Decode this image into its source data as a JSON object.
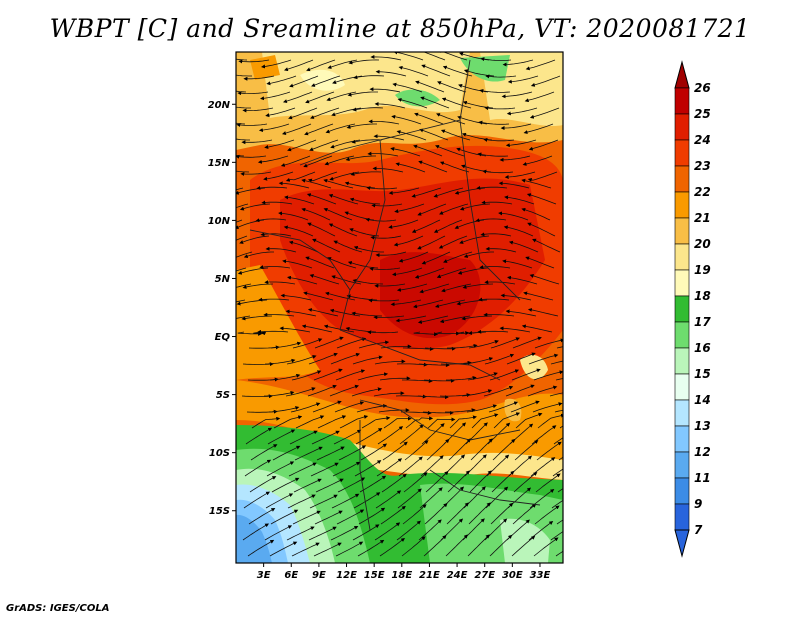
{
  "title": "WBPT [C] and Sreamline at 850hPa, VT: 2020081721",
  "credit": "GrADS: IGES/COLA",
  "map": {
    "lon_range": [
      0,
      35.5
    ],
    "lat_range": [
      -19.5,
      24.5
    ],
    "lat_ticks": [
      {
        "value": 20,
        "label": "20N"
      },
      {
        "value": 15,
        "label": "15N"
      },
      {
        "value": 10,
        "label": "10N"
      },
      {
        "value": 5,
        "label": "5N"
      },
      {
        "value": 0,
        "label": "EQ"
      },
      {
        "value": -5,
        "label": "5S"
      },
      {
        "value": -10,
        "label": "10S"
      },
      {
        "value": -15,
        "label": "15S"
      }
    ],
    "lon_ticks": [
      {
        "value": 3,
        "label": "3E"
      },
      {
        "value": 6,
        "label": "6E"
      },
      {
        "value": 9,
        "label": "9E"
      },
      {
        "value": 12,
        "label": "12E"
      },
      {
        "value": 15,
        "label": "15E"
      },
      {
        "value": 18,
        "label": "18E"
      },
      {
        "value": 21,
        "label": "21E"
      },
      {
        "value": 24,
        "label": "24E"
      },
      {
        "value": 27,
        "label": "27E"
      },
      {
        "value": 30,
        "label": "30E"
      },
      {
        "value": 33,
        "label": "33E"
      }
    ]
  },
  "colorbar": {
    "levels": [
      {
        "label": "26",
        "color": "#a00000"
      },
      {
        "label": "25",
        "color": "#c00000"
      },
      {
        "label": "24",
        "color": "#e01e00"
      },
      {
        "label": "23",
        "color": "#f03c00"
      },
      {
        "label": "22",
        "color": "#f06400"
      },
      {
        "label": "21",
        "color": "#f99a00"
      },
      {
        "label": "20",
        "color": "#f8be46"
      },
      {
        "label": "19",
        "color": "#fce68c"
      },
      {
        "label": "18",
        "color": "#fffab9"
      },
      {
        "label": "17",
        "color": "#32bc32"
      },
      {
        "label": "16",
        "color": "#6edc6e"
      },
      {
        "label": "15",
        "color": "#baf5ba"
      },
      {
        "label": "14",
        "color": "#e8fff0"
      },
      {
        "label": "13",
        "color": "#b4e6ff"
      },
      {
        "label": "12",
        "color": "#82c8ff"
      },
      {
        "label": "11",
        "color": "#5aaaf0"
      },
      {
        "label": "9",
        "color": "#3c8ce6"
      },
      {
        "label": "7",
        "color": "#2864dc"
      }
    ],
    "bottom_color": "#2864dc"
  }
}
